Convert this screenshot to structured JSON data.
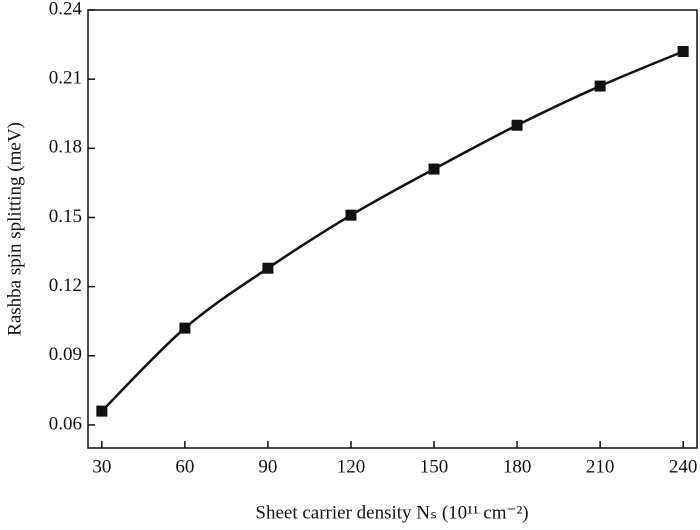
{
  "chart_data": {
    "type": "line",
    "x_label": "Sheet carrier density Nₛ (10¹¹ cm⁻²)",
    "y_label": "Rashba spin splitting (meV)",
    "x": [
      30,
      60,
      90,
      120,
      150,
      180,
      210,
      240
    ],
    "series": [
      {
        "color": "#111111",
        "values": [
          0.066,
          0.102,
          0.128,
          0.151,
          0.171,
          0.19,
          0.207,
          0.222
        ]
      }
    ],
    "xlim": [
      25,
      245
    ],
    "xticks": [
      30,
      60,
      90,
      120,
      150,
      180,
      210,
      240
    ],
    "ylim": [
      0.05,
      0.24
    ],
    "yticks": [
      0.06,
      0.09,
      0.12,
      0.15,
      0.18,
      0.21,
      0.24
    ],
    "grid": false
  }
}
